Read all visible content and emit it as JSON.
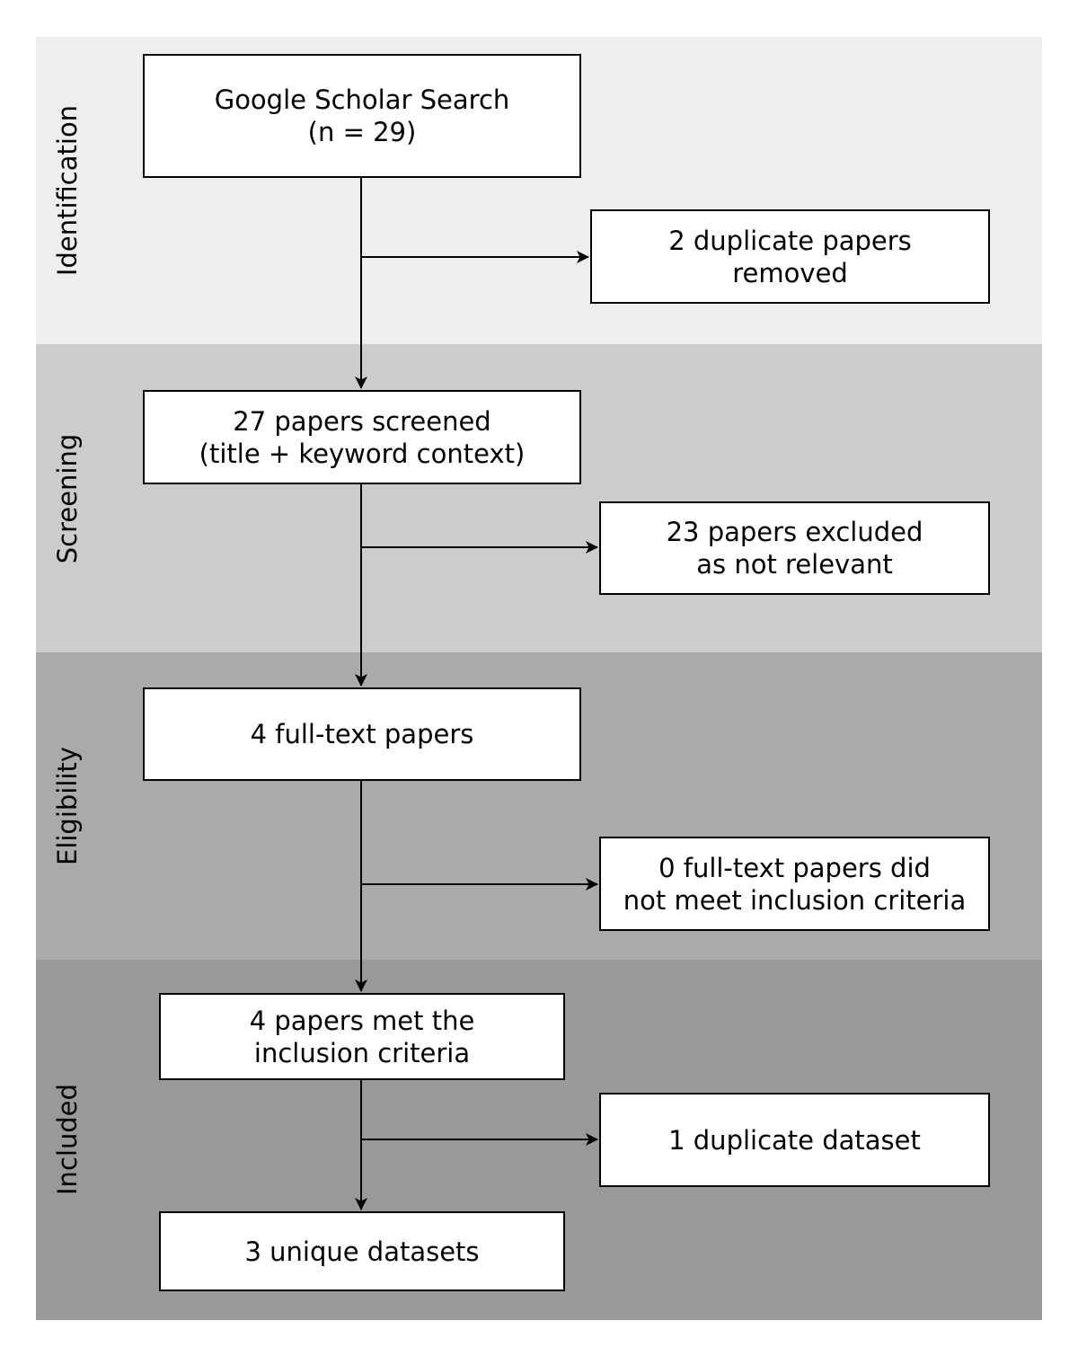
{
  "stages": [
    {
      "label": "Identification",
      "color": "#eeeeee"
    },
    {
      "label": "Screening",
      "color": "#cccccc"
    },
    {
      "label": "Eligibility",
      "color": "#aaaaaa"
    },
    {
      "label": "Included",
      "color": "#999999"
    }
  ],
  "boxes": {
    "search": {
      "line1": "Google Scholar Search",
      "line2": "(n = 29)"
    },
    "duplicates_removed": {
      "line1": "2 duplicate papers",
      "line2": "removed"
    },
    "screened": {
      "line1": "27 papers screened",
      "line2": "(title + keyword context)"
    },
    "excluded": {
      "line1": "23 papers excluded",
      "line2": "as not relevant"
    },
    "full_text": {
      "line1": "4 full-text papers"
    },
    "not_meeting": {
      "line1": "0 full-text papers did",
      "line2": "not meet inclusion criteria"
    },
    "met_criteria": {
      "line1": "4 papers met the",
      "line2": "inclusion criteria"
    },
    "duplicate_dataset": {
      "line1": "1 duplicate dataset"
    },
    "unique_datasets": {
      "line1": "3 unique datasets"
    }
  }
}
